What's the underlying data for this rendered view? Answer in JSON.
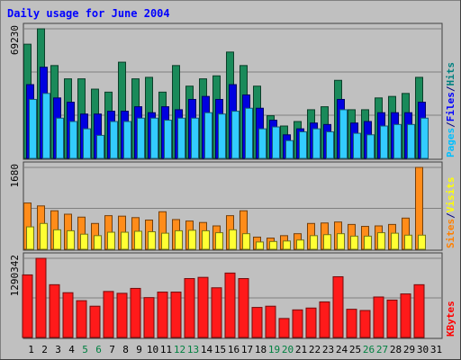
{
  "chart_data": {
    "type": "bar",
    "title": "Daily usage for June 2004",
    "categories": [
      "1",
      "2",
      "3",
      "4",
      "5",
      "6",
      "7",
      "8",
      "9",
      "10",
      "11",
      "12",
      "13",
      "14",
      "15",
      "16",
      "17",
      "18",
      "19",
      "20",
      "21",
      "22",
      "23",
      "24",
      "25",
      "26",
      "27",
      "28",
      "29",
      "30",
      "31"
    ],
    "weekend_days": [
      "5",
      "6",
      "12",
      "13",
      "19",
      "20",
      "26",
      "27"
    ],
    "panels": [
      {
        "name": "hits-files-pages",
        "max_label": "69230",
        "ylim": [
          0,
          69230
        ],
        "legend": [
          {
            "label": "Pages",
            "color": "#00bfff"
          },
          {
            "label": "/",
            "color": "#000080"
          },
          {
            "label": "Files",
            "color": "#0000ff"
          },
          {
            "label": "/",
            "color": "#000080"
          },
          {
            "label": "Hits",
            "color": "#008080"
          }
        ],
        "series": [
          {
            "name": "Hits",
            "color": "#1a8a5a",
            "values": [
              61000,
              69230,
              49600,
              42500,
              42500,
              37000,
              35400,
              51400,
              42500,
              43300,
              35400,
              49600,
              38600,
              42500,
              44100,
              56800,
              49600,
              38600,
              22800,
              17300,
              19700,
              26000,
              27600,
              41700,
              26000,
              26000,
              32300,
              33100,
              34700,
              43300,
              0
            ]
          },
          {
            "name": "Files",
            "color": "#0000e0",
            "values": [
              39400,
              48700,
              32300,
              30000,
              23700,
              23700,
              25200,
              25200,
              27600,
              24400,
              27600,
              26000,
              31500,
              33100,
              31500,
              39400,
              33900,
              26800,
              20400,
              12600,
              15800,
              18900,
              18100,
              31500,
              18900,
              19700,
              24400,
              24400,
              24400,
              30000,
              0
            ]
          },
          {
            "name": "Pages",
            "color": "#33ccff",
            "values": [
              31500,
              34700,
              21500,
              19700,
              15800,
              12300,
              19700,
              19700,
              21500,
              21500,
              20400,
              21500,
              21500,
              24400,
              23700,
              25200,
              26800,
              15800,
              16800,
              9500,
              14200,
              15800,
              14200,
              26000,
              13400,
              12600,
              17300,
              18100,
              18100,
              21500,
              0
            ]
          }
        ]
      },
      {
        "name": "visits-sites",
        "max_label": "1680",
        "ylim": [
          0,
          1680
        ],
        "legend": [
          {
            "label": "Sites",
            "color": "#ff8000"
          },
          {
            "label": "/",
            "color": "#000080"
          },
          {
            "label": "Visits",
            "color": "#ffff00"
          }
        ],
        "series": [
          {
            "name": "Sites",
            "color": "#ff8c1a",
            "values": [
              950,
              890,
              790,
              720,
              660,
              530,
              690,
              680,
              650,
              600,
              770,
              610,
              580,
              550,
              480,
              690,
              790,
              250,
              230,
              280,
              320,
              530,
              540,
              560,
              510,
              470,
              480,
              510,
              640,
              1680,
              0
            ]
          },
          {
            "name": "Visits",
            "color": "#ffff33",
            "values": [
              460,
              530,
              400,
              380,
              310,
              280,
              350,
              350,
              370,
              360,
              330,
              380,
              390,
              380,
              340,
              400,
              320,
              150,
              160,
              170,
              190,
              280,
              300,
              320,
              270,
              270,
              340,
              330,
              290,
              290,
              0
            ]
          }
        ]
      },
      {
        "name": "kbytes",
        "max_label": "1290342",
        "ylim": [
          0,
          1290342
        ],
        "legend": [
          {
            "label": "KBytes",
            "color": "#ff0000"
          }
        ],
        "series": [
          {
            "name": "KBytes",
            "color": "#ff1a1a",
            "values": [
              1020000,
              1290342,
              860000,
              730000,
              600000,
              510000,
              750000,
              720000,
              800000,
              650000,
              740000,
              740000,
              960000,
              980000,
              810000,
              1050000,
              960000,
              490000,
              510000,
              310000,
              450000,
              480000,
              580000,
              990000,
              460000,
              440000,
              660000,
              610000,
              710000,
              860000,
              0
            ]
          }
        ]
      }
    ]
  }
}
